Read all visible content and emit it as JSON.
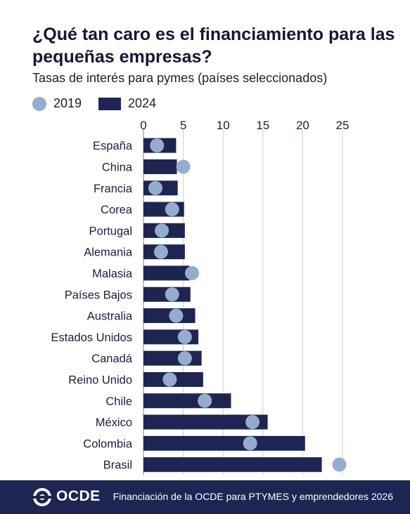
{
  "header": {
    "title": "¿Qué tan caro es el financiamiento para las pequeñas empresas?",
    "subtitle": "Tasas de interés para pymes (países seleccionados)"
  },
  "legend": {
    "item_2019": "2019",
    "item_2024": "2024"
  },
  "colors": {
    "bar_2024": "#1f2552",
    "dot_2019": "#94adce",
    "gridline": "#c9cfdc",
    "footer_bg": "#1f2552"
  },
  "chart_data": {
    "type": "bar",
    "orientation": "horizontal",
    "title": "¿Qué tan caro es el financiamiento para las pequeñas empresas?",
    "subtitle": "Tasas de interés para pymes (países seleccionados)",
    "xlim": [
      0,
      25
    ],
    "x_ticks": [
      "0",
      "5",
      "10",
      "15",
      "20",
      "25"
    ],
    "grid": true,
    "legend_position": "top-left",
    "categories": [
      "España",
      "China",
      "Francia",
      "Corea",
      "Portugal",
      "Alemania",
      "Malasia",
      "Países Bajos",
      "Australia",
      "Estados Unidos",
      "Canadá",
      "Reino Unido",
      "Chile",
      "México",
      "Colombia",
      "Brasil"
    ],
    "series": [
      {
        "name": "2024",
        "mark": "bar",
        "values": [
          4.1,
          4.2,
          4.3,
          5.1,
          5.2,
          5.2,
          5.8,
          5.9,
          6.5,
          6.9,
          7.3,
          7.5,
          11.0,
          15.6,
          20.3,
          22.4
        ]
      },
      {
        "name": "2019",
        "mark": "dot",
        "values": [
          1.7,
          5.0,
          1.5,
          3.6,
          2.3,
          2.2,
          6.1,
          3.6,
          4.1,
          5.2,
          5.2,
          3.3,
          7.7,
          13.7,
          13.4,
          24.6
        ]
      }
    ]
  },
  "footer": {
    "logo_text": "OCDE",
    "credit": "Financiación de la OCDE para PTYMES y emprendedores 2026"
  }
}
